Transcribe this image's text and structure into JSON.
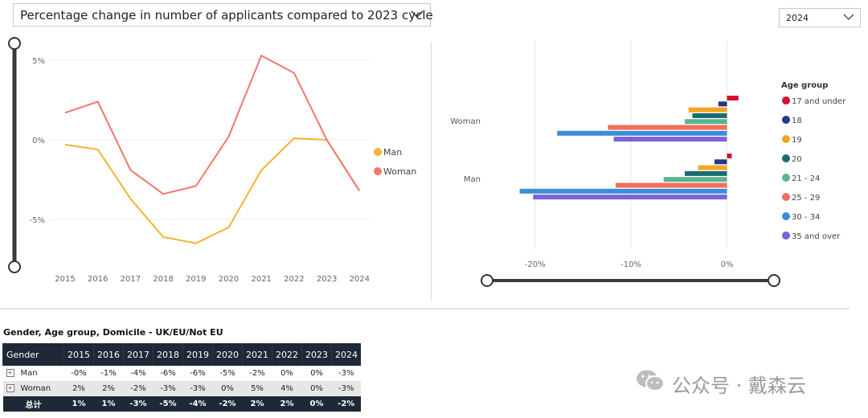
{
  "filters": {
    "metric_label": "Percentage change in number of applicants compared to 2023 cycle",
    "year_label": "2024"
  },
  "line_chart": {
    "y_ticks": [
      "5%",
      "0%",
      "-5%"
    ],
    "x_ticks": [
      "2015",
      "2016",
      "2017",
      "2018",
      "2019",
      "2020",
      "2021",
      "2022",
      "2023",
      "2024"
    ],
    "legend": [
      {
        "name": "Man",
        "color": "#f5b333"
      },
      {
        "name": "Woman",
        "color": "#f4776a"
      }
    ]
  },
  "bar_chart": {
    "categories": [
      "Woman",
      "Man"
    ],
    "x_ticks": [
      "-20%",
      "-10%",
      "0%"
    ],
    "legend_title": "Age group",
    "legend": [
      {
        "name": "17 and under",
        "color": "#d7102d"
      },
      {
        "name": "18",
        "color": "#213b86"
      },
      {
        "name": "19",
        "color": "#f2a61e"
      },
      {
        "name": "20",
        "color": "#186c72"
      },
      {
        "name": "21 - 24",
        "color": "#57b58b"
      },
      {
        "name": "25 - 29",
        "color": "#f26d5b"
      },
      {
        "name": "30 - 34",
        "color": "#3a8ed8"
      },
      {
        "name": "35 and over",
        "color": "#7c62d4"
      }
    ]
  },
  "chart_data": [
    {
      "type": "line",
      "x": [
        2015,
        2016,
        2017,
        2018,
        2019,
        2020,
        2021,
        2022,
        2023,
        2024
      ],
      "ylim": [
        -8,
        7
      ],
      "series": [
        {
          "name": "Man",
          "color": "#f5b333",
          "values": [
            -0.3,
            -0.6,
            -3.7,
            -6.1,
            -6.5,
            -5.5,
            -1.9,
            0.1,
            0.0,
            -3.2
          ]
        },
        {
          "name": "Woman",
          "color": "#f4776a",
          "values": [
            1.7,
            2.4,
            -1.9,
            -3.4,
            -2.9,
            0.2,
            5.3,
            4.2,
            0.0,
            -3.2
          ]
        }
      ],
      "y_ticks": [
        "5%",
        "0%",
        "-5%"
      ]
    },
    {
      "type": "bar",
      "orientation": "horizontal",
      "categories": [
        "Woman",
        "Man"
      ],
      "xlim": [
        -25,
        1.5
      ],
      "x_ticks": [
        "-20%",
        "-10%",
        "0%"
      ],
      "series": [
        {
          "name": "17 and under",
          "color": "#d7102d",
          "values": [
            1.2,
            0.5
          ]
        },
        {
          "name": "18",
          "color": "#213b86",
          "values": [
            -0.9,
            -1.3
          ]
        },
        {
          "name": "19",
          "color": "#f2a61e",
          "values": [
            -4.0,
            -3.0
          ]
        },
        {
          "name": "20",
          "color": "#186c72",
          "values": [
            -3.6,
            -4.4
          ]
        },
        {
          "name": "21 - 24",
          "color": "#57b58b",
          "values": [
            -4.4,
            -6.6
          ]
        },
        {
          "name": "25 - 29",
          "color": "#f26d5b",
          "values": [
            -12.4,
            -11.6
          ]
        },
        {
          "name": "30 - 34",
          "color": "#3a8ed8",
          "values": [
            -17.7,
            -21.6
          ]
        },
        {
          "name": "35 and over",
          "color": "#7c62d4",
          "values": [
            -11.8,
            -20.2
          ]
        }
      ]
    }
  ],
  "table": {
    "title": "Gender, Age group, Domicile - UK/EU/Not EU",
    "header_first": "Gender",
    "years": [
      "2015",
      "2016",
      "2017",
      "2018",
      "2019",
      "2020",
      "2021",
      "2022",
      "2023",
      "2024"
    ],
    "rows": [
      {
        "label": "Man",
        "cells": [
          "-0%",
          "-1%",
          "-4%",
          "-6%",
          "-6%",
          "-5%",
          "-2%",
          "0%",
          "0%",
          "-3%"
        ]
      },
      {
        "label": "Woman",
        "cells": [
          "2%",
          "2%",
          "-2%",
          "-3%",
          "-3%",
          "0%",
          "5%",
          "4%",
          "0%",
          "-3%"
        ]
      }
    ],
    "total": {
      "label": "总计",
      "cells": [
        "1%",
        "1%",
        "-3%",
        "-5%",
        "-4%",
        "-2%",
        "2%",
        "2%",
        "0%",
        "-2%"
      ]
    }
  },
  "watermark": {
    "text": "公众号 · 戴森云"
  }
}
